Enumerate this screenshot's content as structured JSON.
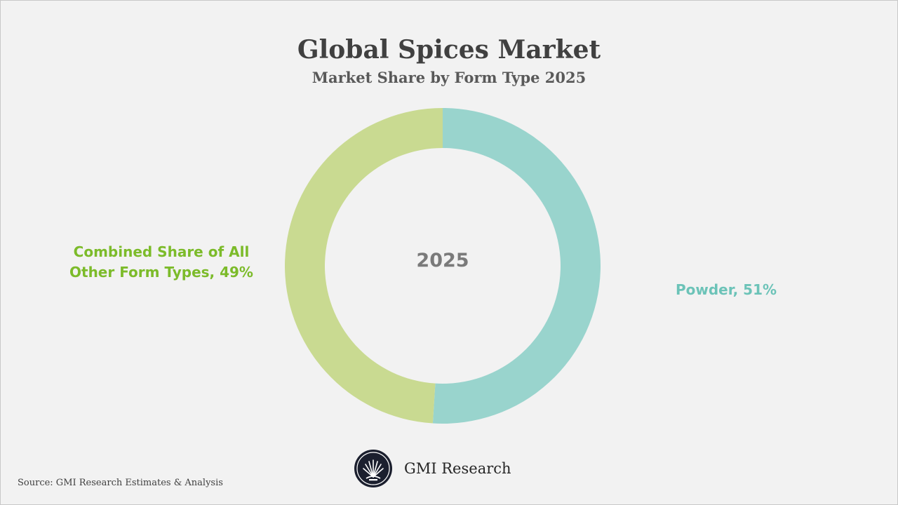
{
  "header": {
    "title": "Global Spices Market",
    "subtitle": "Market Share by Form Type 2025"
  },
  "chart_data": {
    "type": "pie",
    "variant": "donut",
    "title": "Global Spices Market",
    "subtitle": "Market Share by Form Type 2025",
    "center_label": "2025",
    "slices": [
      {
        "label": "Powder, 51%",
        "category": "Powder",
        "value": 51,
        "color": "#99d4cd"
      },
      {
        "label": "Combined Share of All Other Form Types, 49%",
        "category": "Combined Share of All Other Form Types",
        "value": 49,
        "color": "#c9da91"
      }
    ],
    "label_colors": {
      "Powder": "#6cc3b8",
      "Combined Share of All Other Form Types": "#7cbb2a"
    },
    "start_angle_deg": 0,
    "direction": "clockwise"
  },
  "labels": {
    "other_line1": "Combined Share of All",
    "other_line2": "Other Form Types, 49%",
    "powder": "Powder, 51%"
  },
  "footer": {
    "source": "Source: GMI Research Estimates & Analysis",
    "brand": "GMI Research",
    "brand_logo_icon": "gmi-logo-icon"
  }
}
